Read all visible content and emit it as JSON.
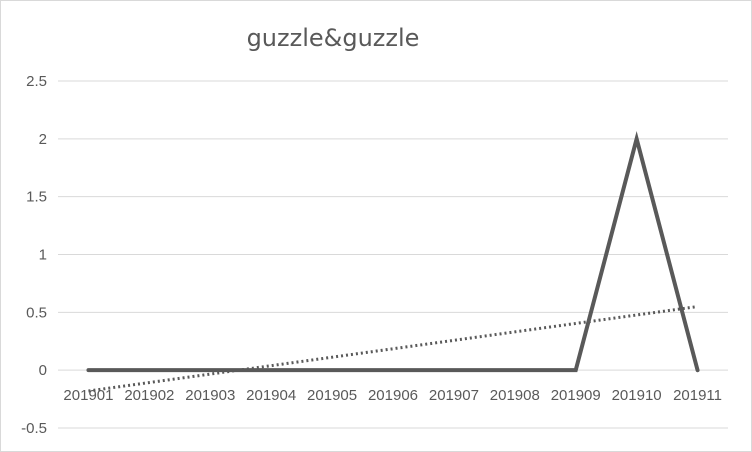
{
  "chart_data": {
    "type": "line",
    "title": "guzzle&guzzle",
    "xlabel": "",
    "ylabel": "",
    "categories": [
      "201901",
      "201902",
      "201903",
      "201904",
      "201905",
      "201906",
      "201907",
      "201908",
      "201909",
      "201910",
      "201911"
    ],
    "series": [
      {
        "values": [
          0,
          0,
          0,
          0,
          0,
          0,
          0,
          0,
          0,
          2,
          0
        ],
        "color": "#595959",
        "style": "solid"
      }
    ],
    "trendline": {
      "type": "linear",
      "style": "dotted",
      "color": "#595959",
      "start": -0.18,
      "end": 0.55
    },
    "ylim": [
      -0.5,
      2.5
    ],
    "yticks": [
      "-0.5",
      "0",
      "0.5",
      "1",
      "1.5",
      "2",
      "2.5"
    ],
    "grid": true,
    "legend": "none"
  }
}
